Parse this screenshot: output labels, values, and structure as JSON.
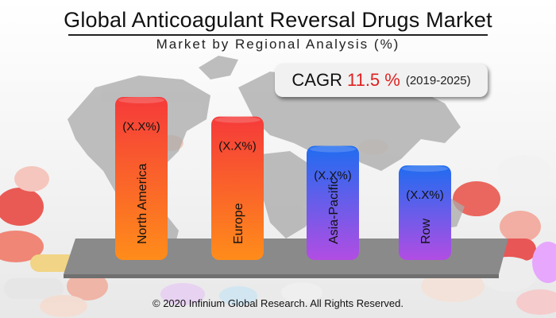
{
  "title": "Global Anticoagulant Reversal Drugs Market",
  "subtitle": "Market by Regional Analysis (%)",
  "cagr": {
    "label": "CAGR",
    "value": "11.5 %",
    "period": "(2019-2025)"
  },
  "footer": "© 2020 Infinium Global Research. All Rights Reserved.",
  "colors": {
    "cagr_value": "#e02020",
    "platform": "#8a8a8a",
    "map": "#a9a9a9"
  },
  "chart_data": {
    "type": "bar",
    "categories": [
      "North America",
      "Europe",
      "Asia-Pacific",
      "Row"
    ],
    "value_labels": [
      "(X.X%)",
      "(X.X%)",
      "(X.X%)",
      "(X.X%)"
    ],
    "values_relative": [
      1.0,
      0.88,
      0.7,
      0.58
    ],
    "values_note_hidden": true,
    "gradients": [
      [
        "#f53a3a",
        "#ff8c1a"
      ],
      [
        "#f53a3a",
        "#ff8c1a"
      ],
      [
        "#1f6cf0",
        "#b24de3"
      ],
      [
        "#1f6cf0",
        "#b24de3"
      ]
    ]
  }
}
